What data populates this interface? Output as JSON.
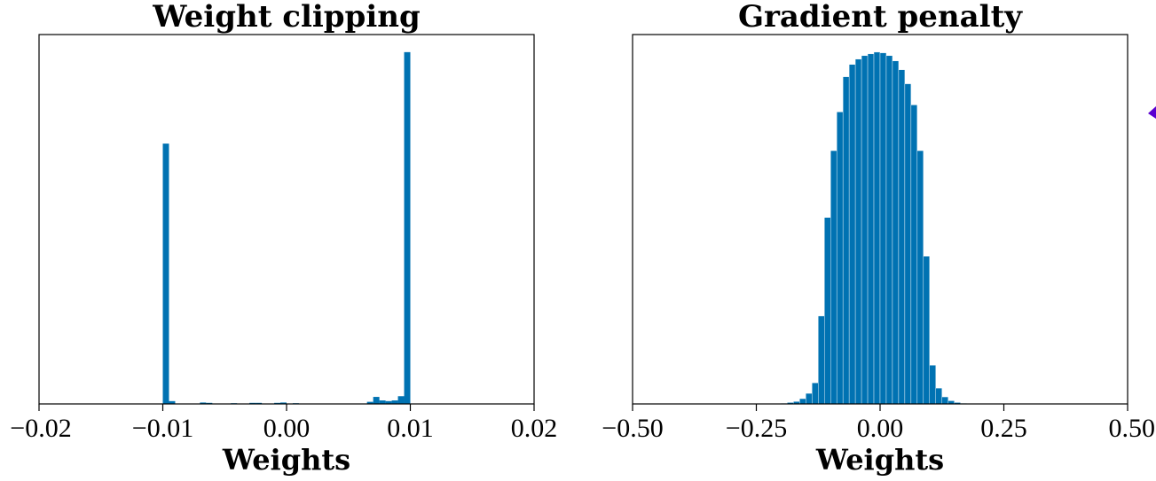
{
  "colors": {
    "bar": "#0072b2",
    "edge_marker": "#5a00d0"
  },
  "edge_marker_icon": "partial-arrow-marker",
  "chart_data": [
    {
      "type": "bar",
      "title": "Weight clipping",
      "xlabel": "Weights",
      "ylabel": "",
      "xlim": [
        -0.02,
        0.02
      ],
      "ylim": [
        0,
        1.05
      ],
      "xticks": [
        -0.02,
        -0.01,
        0.0,
        0.01,
        0.02
      ],
      "xtick_labels": [
        "−0.02",
        "−0.01",
        "0.00",
        "0.01",
        "0.02"
      ],
      "bin_width": 0.0005,
      "bins": [
        {
          "x": -0.01,
          "value": 0.74
        },
        {
          "x": -0.0095,
          "value": 0.008
        },
        {
          "x": -0.007,
          "value": 0.004
        },
        {
          "x": -0.0065,
          "value": 0.003
        },
        {
          "x": -0.0045,
          "value": 0.002
        },
        {
          "x": -0.003,
          "value": 0.003
        },
        {
          "x": -0.0025,
          "value": 0.003
        },
        {
          "x": -0.001,
          "value": 0.003
        },
        {
          "x": -0.0005,
          "value": 0.004
        },
        {
          "x": 0.0005,
          "value": 0.002
        },
        {
          "x": 0.0065,
          "value": 0.006
        },
        {
          "x": 0.007,
          "value": 0.02
        },
        {
          "x": 0.0075,
          "value": 0.01
        },
        {
          "x": 0.008,
          "value": 0.008
        },
        {
          "x": 0.0085,
          "value": 0.01
        },
        {
          "x": 0.009,
          "value": 0.022
        },
        {
          "x": 0.0095,
          "value": 1.0
        }
      ]
    },
    {
      "type": "bar",
      "title": "Gradient penalty",
      "xlabel": "Weights",
      "ylabel": "",
      "xlim": [
        -0.5,
        0.5
      ],
      "ylim": [
        0,
        1.05
      ],
      "xticks": [
        -0.5,
        -0.25,
        0.0,
        0.25,
        0.5
      ],
      "xtick_labels": [
        "−0.50",
        "−0.25",
        "0.00",
        "0.25",
        "0.50"
      ],
      "bin_width": 0.0125,
      "bins": [
        {
          "x": -0.2,
          "value": 0.002
        },
        {
          "x": -0.1875,
          "value": 0.004
        },
        {
          "x": -0.175,
          "value": 0.007
        },
        {
          "x": -0.1625,
          "value": 0.015
        },
        {
          "x": -0.15,
          "value": 0.03
        },
        {
          "x": -0.1375,
          "value": 0.06
        },
        {
          "x": -0.125,
          "value": 0.25
        },
        {
          "x": -0.1125,
          "value": 0.53
        },
        {
          "x": -0.1,
          "value": 0.72
        },
        {
          "x": -0.0875,
          "value": 0.83
        },
        {
          "x": -0.075,
          "value": 0.93
        },
        {
          "x": -0.0625,
          "value": 0.965
        },
        {
          "x": -0.05,
          "value": 0.98
        },
        {
          "x": -0.0375,
          "value": 0.99
        },
        {
          "x": -0.025,
          "value": 0.995
        },
        {
          "x": -0.0125,
          "value": 1.0
        },
        {
          "x": 0.0,
          "value": 0.998
        },
        {
          "x": 0.0125,
          "value": 0.99
        },
        {
          "x": 0.025,
          "value": 0.975
        },
        {
          "x": 0.0375,
          "value": 0.95
        },
        {
          "x": 0.05,
          "value": 0.91
        },
        {
          "x": 0.0625,
          "value": 0.85
        },
        {
          "x": 0.075,
          "value": 0.72
        },
        {
          "x": 0.0875,
          "value": 0.42
        },
        {
          "x": 0.1,
          "value": 0.11
        },
        {
          "x": 0.1125,
          "value": 0.045
        },
        {
          "x": 0.125,
          "value": 0.02
        },
        {
          "x": 0.1375,
          "value": 0.009
        },
        {
          "x": 0.15,
          "value": 0.004
        },
        {
          "x": 0.1625,
          "value": 0.002
        }
      ]
    }
  ]
}
